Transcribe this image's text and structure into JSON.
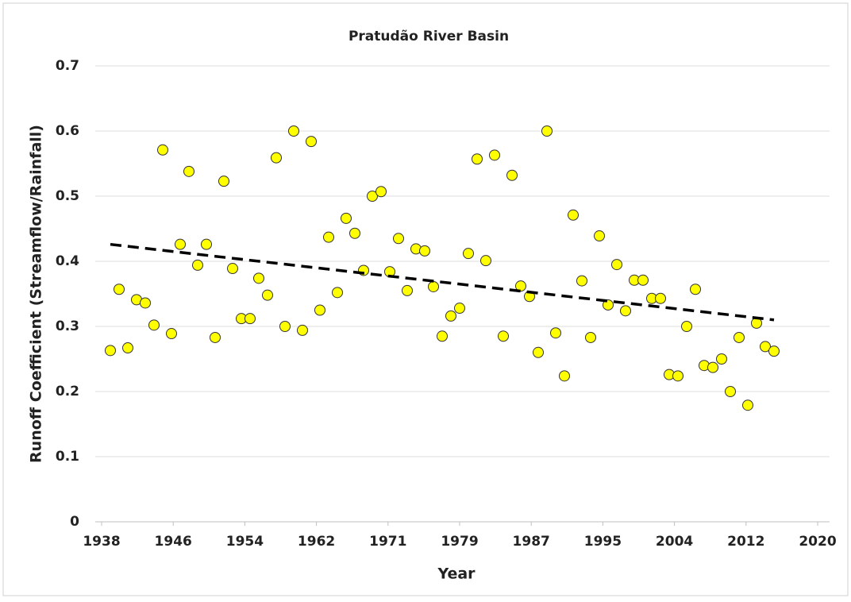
{
  "chart_data": {
    "type": "scatter",
    "title": "Pratudão River Basin",
    "x_label": "Year",
    "y_label": "Runoff Coefficient (Streamflow/Rainfall)",
    "x": [
      1939,
      1940,
      1941,
      1942,
      1943,
      1944,
      1945,
      1946,
      1947,
      1948,
      1949,
      1950,
      1951,
      1952,
      1953,
      1954,
      1955,
      1956,
      1957,
      1958,
      1959,
      1960,
      1961,
      1962,
      1963,
      1964,
      1965,
      1966,
      1967,
      1968,
      1969,
      1970,
      1971,
      1972,
      1973,
      1974,
      1975,
      1976,
      1977,
      1978,
      1979,
      1980,
      1981,
      1982,
      1983,
      1984,
      1985,
      1986,
      1987,
      1988,
      1989,
      1990,
      1991,
      1992,
      1993,
      1994,
      1995,
      1996,
      1997,
      1998,
      1999,
      2000,
      2001,
      2002,
      2003,
      2004,
      2005,
      2006,
      2007,
      2008,
      2009,
      2010,
      2011,
      2012,
      2013,
      2014,
      2015
    ],
    "values": [
      0.263,
      0.357,
      0.267,
      0.341,
      0.336,
      0.302,
      0.571,
      0.289,
      0.426,
      0.538,
      0.394,
      0.426,
      0.283,
      0.523,
      0.389,
      0.312,
      0.312,
      0.374,
      0.348,
      0.559,
      0.3,
      0.6,
      0.294,
      0.584,
      0.325,
      0.437,
      0.352,
      0.466,
      0.443,
      0.386,
      0.5,
      0.507,
      0.384,
      0.435,
      0.355,
      0.419,
      0.416,
      0.361,
      0.285,
      0.316,
      0.328,
      0.412,
      0.557,
      0.401,
      0.563,
      0.285,
      0.532,
      0.362,
      0.346,
      0.26,
      0.6,
      0.29,
      0.224,
      0.471,
      0.37,
      0.283,
      0.439,
      0.333,
      0.395,
      0.324,
      0.371,
      0.371,
      0.343,
      0.343,
      0.226,
      0.224,
      0.3,
      0.357,
      0.24,
      0.237,
      0.25,
      0.2,
      0.283,
      0.179,
      0.305,
      0.269,
      0.262
    ],
    "color": "#ffff00",
    "trendline": {
      "x": [
        1939,
        2015
      ],
      "values": [
        0.426,
        0.31
      ],
      "color": "#000000",
      "dashed": true
    },
    "xlim": [
      1938,
      2020
    ],
    "xticks": [
      1938,
      {
        "value": 1946.2,
        "label": "1946"
      },
      {
        "value": 1954.4,
        "label": "1954"
      },
      {
        "value": 1962.6,
        "label": "1962"
      },
      {
        "value": 1970.8,
        "label": "1971"
      },
      1979,
      {
        "value": 1987.2,
        "label": "1987"
      },
      {
        "value": 1995.4,
        "label": "1995"
      },
      {
        "value": 2003.6,
        "label": "2004"
      },
      {
        "value": 2011.8,
        "label": "2012"
      },
      2020
    ],
    "ylim": [
      0,
      0.7
    ],
    "yticks": [
      0,
      0.1,
      0.2,
      0.3,
      0.4,
      0.5,
      0.6,
      0.7
    ],
    "grid": true
  }
}
